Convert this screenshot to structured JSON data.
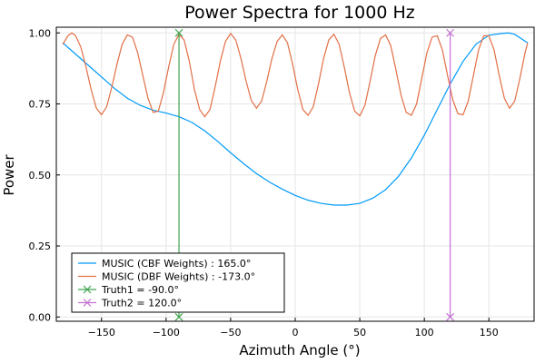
{
  "chart_data": {
    "type": "line",
    "title": "Power Spectra for 1000 Hz",
    "xlabel": "Azimuth Angle (°)",
    "ylabel": "Power",
    "xlim": [
      -185,
      185
    ],
    "ylim": [
      -0.015,
      1.02
    ],
    "xticks": [
      -150,
      -100,
      -50,
      0,
      50,
      100,
      150
    ],
    "yticks": [
      0.0,
      0.25,
      0.5,
      0.75,
      1.0
    ],
    "xtick_labels": [
      "−150",
      "−100",
      "−50",
      "0",
      "50",
      "100",
      "150"
    ],
    "ytick_labels": [
      "0.00",
      "0.25",
      "0.50",
      "0.75",
      "1.00"
    ],
    "grid": true,
    "legend_position": "bottom-left",
    "series": [
      {
        "name": "MUSIC (CBF Weights) : 165.0°",
        "color": "#009AFA",
        "x": [
          -180,
          -170,
          -160,
          -150,
          -140,
          -130,
          -120,
          -110,
          -100,
          -90,
          -80,
          -70,
          -60,
          -50,
          -40,
          -30,
          -20,
          -10,
          0,
          10,
          20,
          30,
          40,
          50,
          60,
          70,
          80,
          90,
          100,
          110,
          120,
          130,
          140,
          150,
          160,
          165,
          170,
          180
        ],
        "y": [
          0.965,
          0.925,
          0.885,
          0.845,
          0.805,
          0.77,
          0.745,
          0.728,
          0.718,
          0.705,
          0.685,
          0.655,
          0.618,
          0.578,
          0.54,
          0.505,
          0.475,
          0.45,
          0.428,
          0.411,
          0.4,
          0.394,
          0.394,
          0.4,
          0.418,
          0.448,
          0.495,
          0.56,
          0.64,
          0.73,
          0.82,
          0.9,
          0.96,
          0.992,
          0.998,
          1.0,
          0.995,
          0.965
        ]
      },
      {
        "name": "MUSIC (DBF Weights) : -173.0°",
        "color": "#E26F46",
        "x": [
          -180,
          -176,
          -173,
          -170,
          -166,
          -162,
          -158,
          -154,
          -150,
          -146,
          -142,
          -138,
          -134,
          -130,
          -126,
          -122,
          -118,
          -114,
          -110,
          -106,
          -102,
          -98,
          -94,
          -90,
          -86,
          -82,
          -78,
          -74,
          -70,
          -66,
          -62,
          -58,
          -54,
          -50,
          -46,
          -42,
          -38,
          -34,
          -30,
          -26,
          -22,
          -18,
          -14,
          -10,
          -6,
          -2,
          2,
          6,
          10,
          14,
          18,
          22,
          26,
          30,
          34,
          38,
          42,
          46,
          50,
          54,
          58,
          62,
          66,
          70,
          74,
          78,
          82,
          86,
          90,
          94,
          98,
          102,
          106,
          110,
          114,
          118,
          122,
          126,
          130,
          134,
          138,
          142,
          146,
          150,
          154,
          158,
          162,
          166,
          170,
          174,
          178,
          180
        ],
        "y": [
          0.96,
          0.99,
          1.0,
          0.99,
          0.95,
          0.88,
          0.8,
          0.735,
          0.712,
          0.74,
          0.81,
          0.89,
          0.96,
          0.993,
          0.985,
          0.93,
          0.85,
          0.77,
          0.72,
          0.725,
          0.79,
          0.88,
          0.96,
          0.995,
          0.975,
          0.9,
          0.8,
          0.73,
          0.705,
          0.73,
          0.81,
          0.9,
          0.97,
          0.998,
          0.975,
          0.91,
          0.83,
          0.762,
          0.735,
          0.76,
          0.83,
          0.91,
          0.97,
          0.993,
          0.965,
          0.89,
          0.8,
          0.73,
          0.71,
          0.74,
          0.82,
          0.91,
          0.975,
          0.995,
          0.96,
          0.88,
          0.79,
          0.725,
          0.708,
          0.745,
          0.83,
          0.92,
          0.98,
          0.993,
          0.955,
          0.87,
          0.78,
          0.72,
          0.71,
          0.75,
          0.84,
          0.93,
          0.985,
          0.99,
          0.94,
          0.85,
          0.765,
          0.715,
          0.712,
          0.76,
          0.85,
          0.94,
          0.99,
          0.99,
          0.94,
          0.85,
          0.77,
          0.735,
          0.76,
          0.84,
          0.93,
          0.965
        ]
      },
      {
        "name": "Truth1 = -90.0°",
        "color": "#3EA44E",
        "x": [
          -90,
          -90
        ],
        "y": [
          0.0,
          1.0
        ],
        "marker": "x"
      },
      {
        "name": "Truth2 = 120.0°",
        "color": "#C271D2",
        "x": [
          120,
          120
        ],
        "y": [
          0.0,
          1.0
        ],
        "marker": "x"
      }
    ]
  }
}
